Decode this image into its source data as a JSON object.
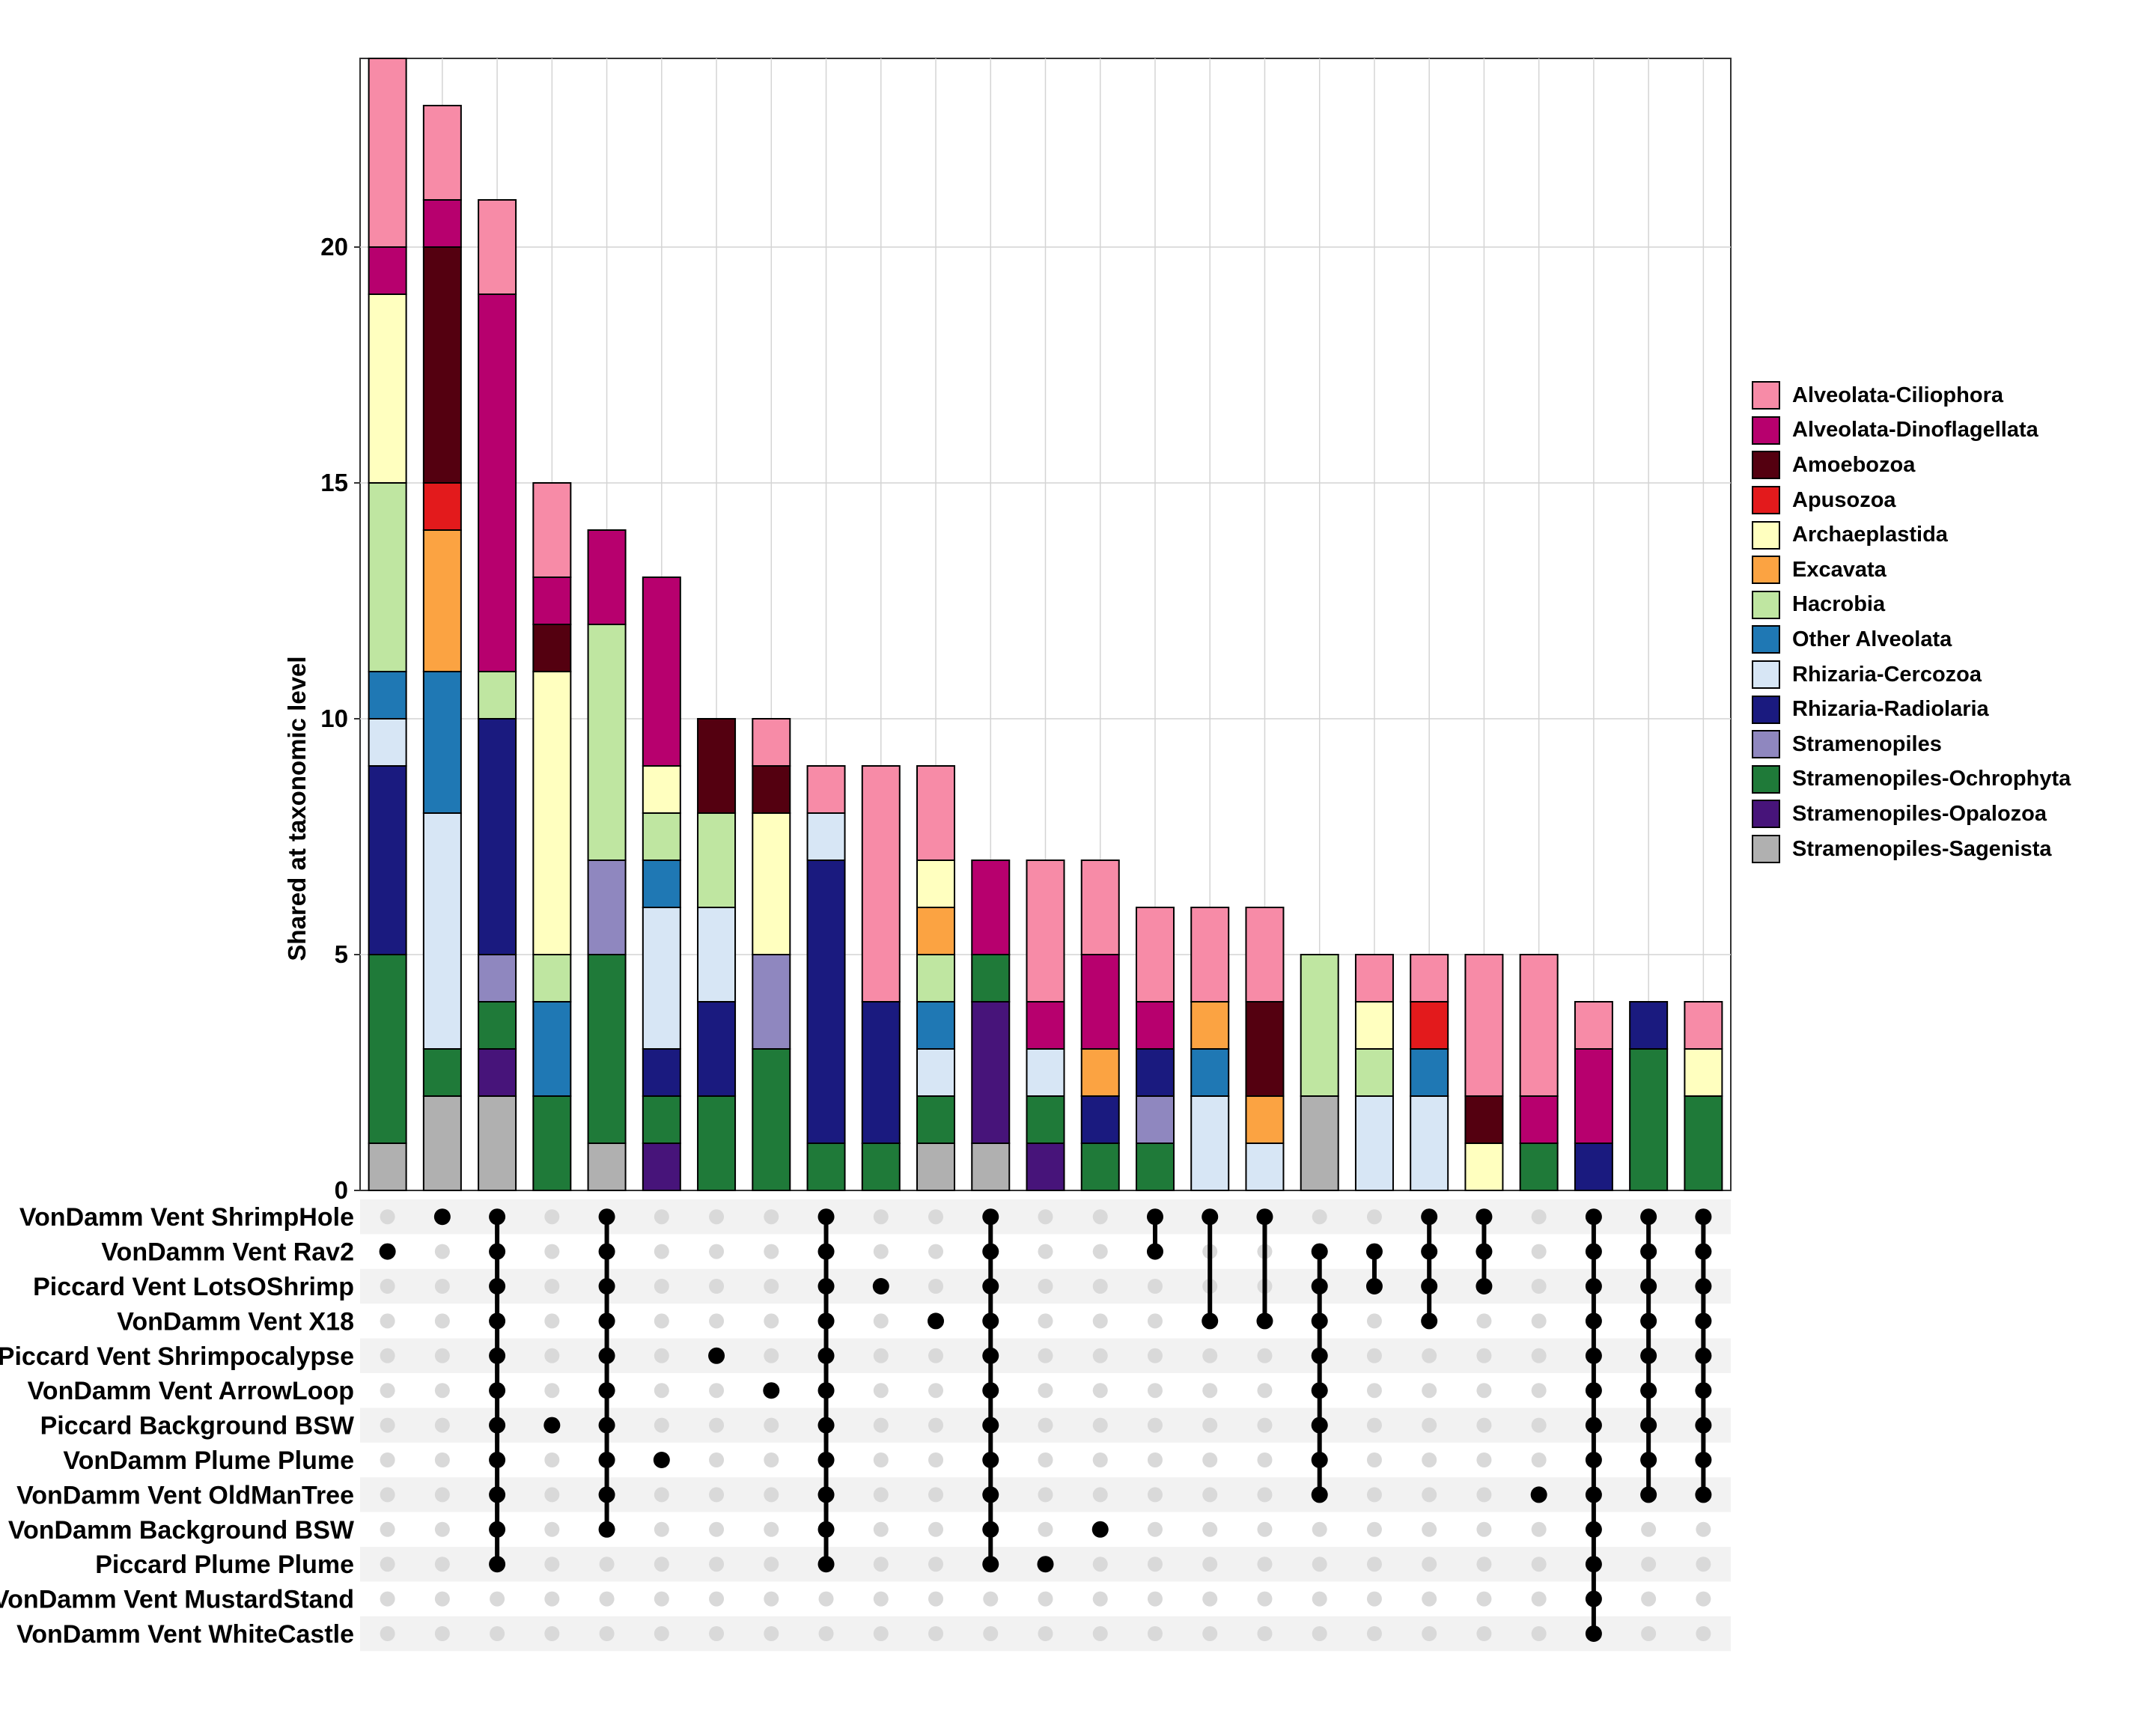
{
  "chart_data": {
    "type": "upset-stacked-bar",
    "ylabel": "Shared at taxonomic level",
    "ylim": [
      0,
      24
    ],
    "yticks": [
      0,
      5,
      10,
      15,
      20
    ],
    "legend_position": "right",
    "categories": [
      "Alveolata-Ciliophora",
      "Alveolata-Dinoflagellata",
      "Amoebozoa",
      "Apusozoa",
      "Archaeplastida",
      "Excavata",
      "Hacrobia",
      "Other Alveolata",
      "Rhizaria-Cercozoa",
      "Rhizaria-Radiolaria",
      "Stramenopiles",
      "Stramenopiles-Ochrophyta",
      "Stramenopiles-Opalozoa",
      "Stramenopiles-Sagenista"
    ],
    "colors": [
      "#f78ba7",
      "#b7006e",
      "#540010",
      "#e31a1c",
      "#ffffbf",
      "#fba342",
      "#bfe6a1",
      "#1f78b4",
      "#d7e6f5",
      "#1a1a7f",
      "#8f87bf",
      "#1f7a39",
      "#47147a",
      "#b0b0b0"
    ],
    "sets": [
      "VonDamm Vent ShrimpHole",
      "VonDamm Vent Rav2",
      "Piccard Vent LotsOShrimp",
      "VonDamm Vent X18",
      "Piccard Vent Shrimpocalypse",
      "VonDamm Vent ArrowLoop",
      "Piccard Background BSW",
      "VonDamm Plume Plume",
      "VonDamm Vent OldManTree",
      "VonDamm Background BSW",
      "Piccard Plume Plume",
      "VonDamm Vent MustardStand",
      "VonDamm Vent WhiteCastle"
    ],
    "intersections": [
      {
        "total": 24,
        "members": [
          1
        ],
        "stack": [
          {
            "c": 13,
            "v": 1
          },
          {
            "c": 11,
            "v": 4
          },
          {
            "c": 9,
            "v": 4
          },
          {
            "c": 8,
            "v": 1
          },
          {
            "c": 7,
            "v": 1
          },
          {
            "c": 6,
            "v": 4
          },
          {
            "c": 4,
            "v": 4
          },
          {
            "c": 1,
            "v": 1
          },
          {
            "c": 0,
            "v": 4
          }
        ]
      },
      {
        "total": 23,
        "members": [
          0
        ],
        "stack": [
          {
            "c": 13,
            "v": 2
          },
          {
            "c": 11,
            "v": 1
          },
          {
            "c": 8,
            "v": 5
          },
          {
            "c": 7,
            "v": 3
          },
          {
            "c": 5,
            "v": 3
          },
          {
            "c": 3,
            "v": 1
          },
          {
            "c": 2,
            "v": 5
          },
          {
            "c": 1,
            "v": 1
          },
          {
            "c": 0,
            "v": 2
          }
        ]
      },
      {
        "total": 21,
        "members": [
          0,
          1,
          2,
          3,
          4,
          5,
          6,
          7,
          8,
          9,
          10
        ],
        "stack": [
          {
            "c": 13,
            "v": 2
          },
          {
            "c": 12,
            "v": 1
          },
          {
            "c": 11,
            "v": 1
          },
          {
            "c": 10,
            "v": 1
          },
          {
            "c": 9,
            "v": 5
          },
          {
            "c": 6,
            "v": 1
          },
          {
            "c": 1,
            "v": 8
          },
          {
            "c": 0,
            "v": 2
          }
        ]
      },
      {
        "total": 15,
        "members": [
          6
        ],
        "stack": [
          {
            "c": 11,
            "v": 2
          },
          {
            "c": 7,
            "v": 2
          },
          {
            "c": 6,
            "v": 1
          },
          {
            "c": 4,
            "v": 6
          },
          {
            "c": 2,
            "v": 1
          },
          {
            "c": 1,
            "v": 1
          },
          {
            "c": 0,
            "v": 2
          }
        ]
      },
      {
        "total": 14,
        "members": [
          0,
          1,
          2,
          3,
          4,
          5,
          6,
          7,
          8,
          9
        ],
        "stack": [
          {
            "c": 13,
            "v": 1
          },
          {
            "c": 11,
            "v": 4
          },
          {
            "c": 10,
            "v": 2
          },
          {
            "c": 6,
            "v": 5
          },
          {
            "c": 1,
            "v": 2
          }
        ]
      },
      {
        "total": 13,
        "members": [
          7
        ],
        "stack": [
          {
            "c": 12,
            "v": 1
          },
          {
            "c": 11,
            "v": 1
          },
          {
            "c": 9,
            "v": 1
          },
          {
            "c": 8,
            "v": 3
          },
          {
            "c": 7,
            "v": 1
          },
          {
            "c": 6,
            "v": 1
          },
          {
            "c": 4,
            "v": 1
          },
          {
            "c": 1,
            "v": 4
          }
        ]
      },
      {
        "total": 10,
        "members": [
          4
        ],
        "stack": [
          {
            "c": 11,
            "v": 2
          },
          {
            "c": 9,
            "v": 2
          },
          {
            "c": 8,
            "v": 2
          },
          {
            "c": 6,
            "v": 2
          },
          {
            "c": 2,
            "v": 2
          }
        ]
      },
      {
        "total": 10,
        "members": [
          5
        ],
        "stack": [
          {
            "c": 11,
            "v": 3
          },
          {
            "c": 10,
            "v": 2
          },
          {
            "c": 4,
            "v": 3
          },
          {
            "c": 2,
            "v": 1
          },
          {
            "c": 0,
            "v": 1
          }
        ]
      },
      {
        "total": 9,
        "members": [
          0,
          1,
          2,
          3,
          4,
          5,
          6,
          7,
          8,
          9,
          10
        ],
        "stack": [
          {
            "c": 11,
            "v": 1
          },
          {
            "c": 9,
            "v": 6
          },
          {
            "c": 8,
            "v": 1
          },
          {
            "c": 0,
            "v": 1
          }
        ]
      },
      {
        "total": 9,
        "members": [
          2
        ],
        "stack": [
          {
            "c": 11,
            "v": 1
          },
          {
            "c": 9,
            "v": 3
          },
          {
            "c": 0,
            "v": 5
          }
        ]
      },
      {
        "total": 9,
        "members": [
          3
        ],
        "stack": [
          {
            "c": 13,
            "v": 1
          },
          {
            "c": 11,
            "v": 1
          },
          {
            "c": 8,
            "v": 1
          },
          {
            "c": 7,
            "v": 1
          },
          {
            "c": 6,
            "v": 1
          },
          {
            "c": 5,
            "v": 1
          },
          {
            "c": 4,
            "v": 1
          },
          {
            "c": 0,
            "v": 2
          }
        ]
      },
      {
        "total": 7,
        "members": [
          0,
          1,
          2,
          3,
          4,
          5,
          6,
          7,
          8,
          9,
          10
        ],
        "stack": [
          {
            "c": 13,
            "v": 1
          },
          {
            "c": 12,
            "v": 3
          },
          {
            "c": 11,
            "v": 1
          },
          {
            "c": 1,
            "v": 2
          }
        ]
      },
      {
        "total": 7,
        "members": [
          10
        ],
        "stack": [
          {
            "c": 12,
            "v": 1
          },
          {
            "c": 11,
            "v": 1
          },
          {
            "c": 8,
            "v": 1
          },
          {
            "c": 1,
            "v": 1
          },
          {
            "c": 0,
            "v": 3
          }
        ]
      },
      {
        "total": 7,
        "members": [
          9
        ],
        "stack": [
          {
            "c": 11,
            "v": 1
          },
          {
            "c": 9,
            "v": 1
          },
          {
            "c": 5,
            "v": 1
          },
          {
            "c": 1,
            "v": 2
          },
          {
            "c": 0,
            "v": 2
          }
        ]
      },
      {
        "total": 6,
        "members": [
          0,
          1
        ],
        "stack": [
          {
            "c": 11,
            "v": 1
          },
          {
            "c": 10,
            "v": 1
          },
          {
            "c": 9,
            "v": 1
          },
          {
            "c": 1,
            "v": 1
          },
          {
            "c": 0,
            "v": 2
          }
        ]
      },
      {
        "total": 6,
        "members": [
          0,
          3
        ],
        "stack": [
          {
            "c": 8,
            "v": 2
          },
          {
            "c": 7,
            "v": 1
          },
          {
            "c": 5,
            "v": 1
          },
          {
            "c": 0,
            "v": 2
          }
        ]
      },
      {
        "total": 6,
        "members": [
          0,
          3
        ],
        "stack": [
          {
            "c": 8,
            "v": 1
          },
          {
            "c": 5,
            "v": 1
          },
          {
            "c": 2,
            "v": 2
          },
          {
            "c": 0,
            "v": 2
          }
        ]
      },
      {
        "total": 5,
        "members": [
          1,
          2,
          3,
          4,
          5,
          6,
          7,
          8
        ],
        "stack": [
          {
            "c": 13,
            "v": 2
          },
          {
            "c": 6,
            "v": 3
          }
        ]
      },
      {
        "total": 5,
        "members": [
          1,
          2
        ],
        "stack": [
          {
            "c": 8,
            "v": 2
          },
          {
            "c": 6,
            "v": 1
          },
          {
            "c": 4,
            "v": 1
          },
          {
            "c": 0,
            "v": 1
          }
        ]
      },
      {
        "total": 5,
        "members": [
          0,
          1,
          2,
          3
        ],
        "stack": [
          {
            "c": 8,
            "v": 2
          },
          {
            "c": 7,
            "v": 1
          },
          {
            "c": 3,
            "v": 1
          },
          {
            "c": 0,
            "v": 1
          }
        ]
      },
      {
        "total": 5,
        "members": [
          0,
          1,
          2
        ],
        "stack": [
          {
            "c": 4,
            "v": 1
          },
          {
            "c": 2,
            "v": 1
          },
          {
            "c": 0,
            "v": 3
          }
        ]
      },
      {
        "total": 5,
        "members": [
          8
        ],
        "stack": [
          {
            "c": 11,
            "v": 1
          },
          {
            "c": 1,
            "v": 1
          },
          {
            "c": 0,
            "v": 3
          }
        ]
      },
      {
        "total": 4,
        "members": [
          0,
          1,
          2,
          3,
          4,
          5,
          6,
          7,
          8,
          9,
          10,
          11,
          12
        ],
        "stack": [
          {
            "c": 9,
            "v": 1
          },
          {
            "c": 1,
            "v": 2
          },
          {
            "c": 0,
            "v": 1
          }
        ]
      },
      {
        "total": 4,
        "members": [
          0,
          1,
          2,
          3,
          4,
          5,
          6,
          7,
          8
        ],
        "stack": [
          {
            "c": 11,
            "v": 3
          },
          {
            "c": 9,
            "v": 1
          }
        ]
      },
      {
        "total": 4,
        "members": [
          0,
          1,
          2,
          3,
          4,
          5,
          6,
          7,
          8
        ],
        "stack": [
          {
            "c": 11,
            "v": 2
          },
          {
            "c": 4,
            "v": 1
          },
          {
            "c": 0,
            "v": 1
          }
        ]
      }
    ]
  }
}
